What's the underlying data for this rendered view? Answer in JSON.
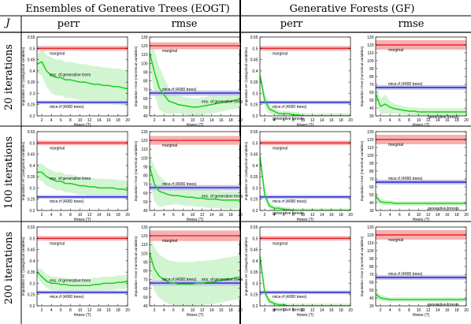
{
  "header": {
    "row_label": "J",
    "eogt_title": "Ensembles of Generative Trees (EOGT)",
    "gf_title": "Generative Forests (GF)",
    "col_perr": "perr",
    "col_rmse": "rmse"
  },
  "chart_data": {
    "type": "line",
    "x": [
      1,
      2,
      3,
      4,
      5,
      6,
      7,
      8,
      9,
      10,
      11,
      12,
      13,
      14,
      15,
      16,
      17,
      18,
      19,
      20
    ],
    "xlabel": "#trees (T)",
    "x_ticks": [
      2,
      4,
      6,
      8,
      10,
      12,
      14,
      16,
      18,
      20
    ],
    "xlim": [
      1,
      20
    ],
    "rows": [
      "20 iterations",
      "100 iterations",
      "200 iterations"
    ],
    "columns": [
      {
        "method": "EOGT",
        "metric": "perr",
        "ylabel": "imputation err (categorical variables)",
        "ylim": [
          0.2,
          0.55
        ],
        "y_ticks": [
          0.2,
          0.25,
          0.3,
          0.35,
          0.4,
          0.45,
          0.5,
          0.55
        ]
      },
      {
        "method": "EOGT",
        "metric": "rmse",
        "ylabel": "imputation rmse (numerical variables)",
        "ylim": [
          40,
          130
        ],
        "y_ticks": [
          40,
          50,
          60,
          70,
          80,
          90,
          100,
          110,
          120,
          130
        ]
      },
      {
        "method": "GF",
        "metric": "perr",
        "ylabel": "imputation err (categorical variables)",
        "ylim": [
          0.2,
          0.55
        ],
        "y_ticks": [
          0.2,
          0.25,
          0.3,
          0.35,
          0.4,
          0.45,
          0.5,
          0.55
        ]
      },
      {
        "method": "GF",
        "metric": "rmse",
        "ylabel": "imputation rmse (numerical variables)",
        "ylim": [
          30,
          130
        ],
        "y_ticks": [
          30,
          40,
          50,
          60,
          70,
          80,
          90,
          100,
          110,
          120,
          130
        ]
      }
    ],
    "series_colors": {
      "marginal": "#e8232a",
      "mice": "#2020c8",
      "method": "#18d018",
      "method_band": "#c9f3c9",
      "marginal_band": "#f6b0b0",
      "mice_band": "#c4c4ee"
    },
    "panels": [
      [
        {
          "marginal": 0.5,
          "marginal_band": 0.01,
          "mice": 0.26,
          "mice_band": 0.008,
          "method_label": "ens. of generative trees",
          "method": [
            0.43,
            0.44,
            0.4,
            0.38,
            0.37,
            0.37,
            0.36,
            0.36,
            0.355,
            0.35,
            0.35,
            0.345,
            0.34,
            0.34,
            0.335,
            0.335,
            0.33,
            0.33,
            0.325,
            0.32
          ],
          "method_band": [
            0.04,
            0.06,
            0.07,
            0.08,
            0.08,
            0.08,
            0.08,
            0.08,
            0.08,
            0.08,
            0.08,
            0.08,
            0.08,
            0.08,
            0.08,
            0.08,
            0.08,
            0.08,
            0.08,
            0.08
          ]
        },
        {
          "marginal": 120,
          "marginal_band": 4,
          "mice": 66,
          "mice_band": 3,
          "method_label": "ens. of generative trees",
          "method": [
            112,
            90,
            72,
            64,
            57,
            55,
            53,
            52,
            51,
            50,
            50,
            51,
            52,
            53,
            54,
            55,
            56,
            57,
            58,
            59
          ],
          "method_band": [
            15,
            25,
            25,
            20,
            15,
            12,
            10,
            10,
            10,
            10,
            10,
            10,
            10,
            10,
            10,
            10,
            10,
            10,
            10,
            10
          ]
        },
        {
          "marginal": 0.5,
          "marginal_band": 0.01,
          "mice": 0.26,
          "mice_band": 0.008,
          "method_label": "generative forests",
          "method": [
            0.38,
            0.27,
            0.23,
            0.22,
            0.21,
            0.21,
            0.21,
            0.205,
            0.205,
            0.2,
            0.2,
            0.2,
            0.2,
            0.2,
            0.2,
            0.2,
            0.2,
            0.2,
            0.2,
            0.2
          ],
          "method_band": [
            0.03,
            0.03,
            0.02,
            0.015,
            0.012,
            0.012,
            0.012,
            0.012,
            0.012,
            0.012,
            0.012,
            0.012,
            0.012,
            0.012,
            0.012,
            0.012,
            0.012,
            0.012,
            0.012,
            0.012
          ]
        },
        {
          "marginal": 120,
          "marginal_band": 6,
          "mice": 66,
          "mice_band": 3,
          "method_label": "generative forests",
          "method": [
            58,
            42,
            45,
            41,
            39,
            38,
            37,
            36,
            36,
            35,
            35,
            35,
            35,
            35,
            35,
            35,
            35,
            35,
            35,
            35
          ],
          "method_band": [
            12,
            10,
            12,
            8,
            6,
            6,
            5,
            5,
            5,
            5,
            5,
            5,
            5,
            5,
            5,
            5,
            5,
            5,
            5,
            5
          ]
        }
      ],
      [
        {
          "marginal": 0.5,
          "marginal_band": 0.01,
          "mice": 0.26,
          "mice_band": 0.008,
          "method_label": "ens. of generative trees",
          "method": [
            0.37,
            0.37,
            0.35,
            0.34,
            0.33,
            0.33,
            0.32,
            0.32,
            0.315,
            0.31,
            0.31,
            0.305,
            0.305,
            0.3,
            0.3,
            0.3,
            0.3,
            0.295,
            0.295,
            0.29
          ],
          "method_band": [
            0.03,
            0.04,
            0.04,
            0.04,
            0.04,
            0.04,
            0.04,
            0.04,
            0.04,
            0.04,
            0.04,
            0.04,
            0.04,
            0.04,
            0.04,
            0.04,
            0.04,
            0.04,
            0.04,
            0.04
          ]
        },
        {
          "marginal": 120,
          "marginal_band": 5,
          "mice": 66,
          "mice_band": 3,
          "method_label": "ens. of generative trees",
          "method": [
            90,
            70,
            62,
            60,
            58,
            57,
            57,
            56,
            55,
            55,
            54,
            54,
            53,
            53,
            53,
            52,
            52,
            52,
            52,
            52
          ],
          "method_band": [
            15,
            20,
            18,
            15,
            12,
            10,
            10,
            10,
            10,
            10,
            10,
            10,
            10,
            10,
            10,
            10,
            10,
            10,
            10,
            10
          ]
        },
        {
          "marginal": 0.5,
          "marginal_band": 0.01,
          "mice": 0.26,
          "mice_band": 0.008,
          "method_label": "generative forests",
          "method": [
            0.44,
            0.27,
            0.22,
            0.21,
            0.21,
            0.205,
            0.205,
            0.2,
            0.2,
            0.2,
            0.2,
            0.2,
            0.2,
            0.2,
            0.2,
            0.2,
            0.2,
            0.2,
            0.2,
            0.2
          ],
          "method_band": [
            0.04,
            0.03,
            0.015,
            0.012,
            0.01,
            0.01,
            0.01,
            0.01,
            0.01,
            0.01,
            0.01,
            0.01,
            0.01,
            0.01,
            0.01,
            0.01,
            0.01,
            0.01,
            0.01,
            0.01
          ]
        },
        {
          "marginal": 120,
          "marginal_band": 6,
          "mice": 66,
          "mice_band": 3,
          "method_label": "generative forests",
          "method": [
            48,
            41,
            40,
            40,
            39,
            39,
            39,
            39,
            39,
            39,
            39,
            39,
            39,
            39,
            39,
            39,
            39,
            39,
            39,
            39
          ],
          "method_band": [
            6,
            4,
            3,
            3,
            3,
            3,
            3,
            3,
            3,
            3,
            3,
            3,
            3,
            3,
            3,
            3,
            3,
            3,
            3,
            3
          ]
        }
      ],
      [
        {
          "marginal": 0.5,
          "marginal_band": 0.01,
          "mice": 0.26,
          "mice_band": 0.008,
          "method_label": "ens. of generative trees",
          "method": [
            0.35,
            0.33,
            0.31,
            0.3,
            0.3,
            0.295,
            0.295,
            0.29,
            0.29,
            0.29,
            0.29,
            0.29,
            0.295,
            0.295,
            0.3,
            0.3,
            0.3,
            0.305,
            0.305,
            0.31
          ],
          "method_band": [
            0.02,
            0.03,
            0.03,
            0.03,
            0.03,
            0.03,
            0.03,
            0.03,
            0.03,
            0.03,
            0.03,
            0.03,
            0.03,
            0.03,
            0.03,
            0.03,
            0.03,
            0.03,
            0.03,
            0.03
          ]
        },
        {
          "marginal": 120,
          "marginal_band": 6,
          "mice": 66,
          "mice_band": 3,
          "method_label": "ens. of generative trees",
          "method": [
            100,
            82,
            74,
            70,
            67,
            66,
            65,
            65,
            65,
            65,
            66,
            66,
            67,
            67,
            68,
            69,
            70,
            71,
            72,
            73
          ],
          "method_band": [
            20,
            25,
            25,
            25,
            25,
            25,
            25,
            25,
            25,
            25,
            25,
            25,
            25,
            25,
            25,
            25,
            25,
            25,
            25,
            25
          ]
        },
        {
          "marginal": 0.5,
          "marginal_band": 0.01,
          "mice": 0.26,
          "mice_band": 0.008,
          "method_label": "generative forests",
          "method": [
            0.42,
            0.26,
            0.22,
            0.21,
            0.205,
            0.205,
            0.2,
            0.2,
            0.2,
            0.2,
            0.2,
            0.2,
            0.2,
            0.2,
            0.2,
            0.2,
            0.2,
            0.2,
            0.2,
            0.2
          ],
          "method_band": [
            0.03,
            0.02,
            0.015,
            0.012,
            0.01,
            0.01,
            0.01,
            0.01,
            0.01,
            0.01,
            0.01,
            0.01,
            0.01,
            0.01,
            0.01,
            0.01,
            0.01,
            0.01,
            0.01,
            0.01
          ]
        },
        {
          "marginal": 120,
          "marginal_band": 6,
          "mice": 66,
          "mice_band": 3,
          "method_label": "generative forests",
          "method": [
            45,
            40,
            39,
            38,
            38,
            38,
            38,
            38,
            38,
            38,
            38,
            38,
            38,
            38,
            38,
            38,
            38,
            38,
            38,
            38
          ],
          "method_band": [
            6,
            4,
            3,
            3,
            3,
            3,
            3,
            3,
            3,
            3,
            3,
            3,
            3,
            3,
            3,
            3,
            3,
            3,
            3,
            3
          ]
        }
      ]
    ],
    "labels": {
      "marginal": "marginal",
      "mice": "mice.rf (4000 trees)"
    }
  }
}
